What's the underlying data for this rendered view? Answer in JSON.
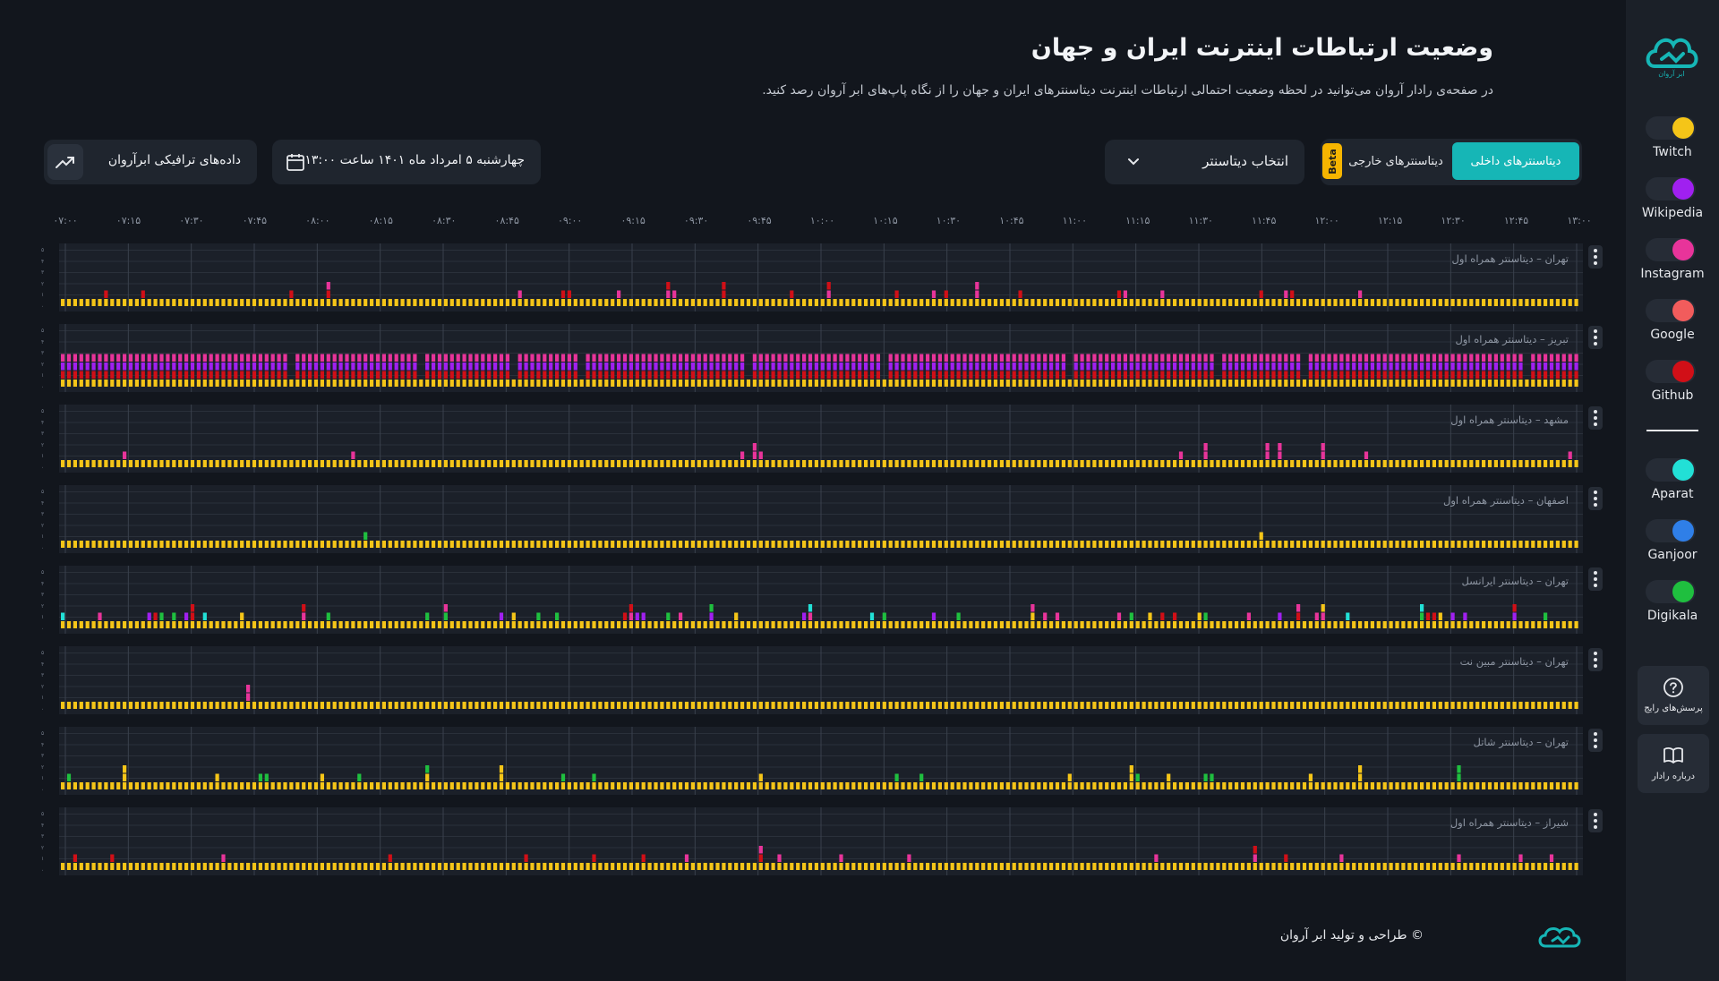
{
  "header": {
    "title": "وضعیت ارتباطات اینترنت ایران و جهان",
    "subtitle": "در صفحه‌ی رادار آروان می‌توانید در لحظه وضعیت احتمالی ارتباطات اینترنت دیتاسنترهای ایران و جهان را از نگاه پاپ‌های ابر آروان رصد کنید."
  },
  "controls": {
    "tab_internal": "دیتاسنترهای داخلی",
    "tab_external": "دیتاسنترهای خارجی",
    "beta": "Beta",
    "datacenter_select": "انتخاب دیتاسنتر",
    "date": "چهارشنبه ۵ امرداد ماه ۱۴۰۱ ساعت ۱۳:۰۰",
    "traffic": "داده‌های ترافیکی ابرآروان",
    "icons": {
      "datacenter_select": "chevron-down-icon",
      "date": "calendar-icon",
      "traffic": "trend-up-icon"
    }
  },
  "time_ticks": [
    "۰۷:۰۰",
    "۰۷:۱۵",
    "۰۷:۳۰",
    "۰۷:۴۵",
    "۰۸:۰۰",
    "۰۸:۱۵",
    "۰۸:۳۰",
    "۰۸:۴۵",
    "۰۹:۰۰",
    "۰۹:۱۵",
    "۰۹:۳۰",
    "۰۹:۴۵",
    "۱۰:۰۰",
    "۱۰:۱۵",
    "۱۰:۳۰",
    "۱۰:۴۵",
    "۱۱:۰۰",
    "۱۱:۱۵",
    "۱۱:۳۰",
    "۱۱:۴۵",
    "۱۲:۰۰",
    "۱۲:۱۵",
    "۱۲:۳۰",
    "۱۲:۴۵",
    "۱۳:۰۰"
  ],
  "y_ticks": [
    "۵",
    "۴",
    "۳",
    "۲",
    "۱",
    "۰"
  ],
  "panels": [
    {
      "label": "تهران – دیتاسنتر همراه اول"
    },
    {
      "label": "تبریز – دیتاسنتر همراه اول"
    },
    {
      "label": "مشهد – دیتاسنتر همراه اول"
    },
    {
      "label": "اصفهان – دیتاسنتر همراه اول"
    },
    {
      "label": "تهران – دیتاسنتر ایرانسل"
    },
    {
      "label": "تهران – دیتاسنتر مبین نت"
    },
    {
      "label": "تهران – دیتاسنتر شاتل"
    },
    {
      "label": "شیراز – دیتاسنتر همراه اول"
    }
  ],
  "services": [
    {
      "name": "Twitch",
      "color": "#f5c518"
    },
    {
      "name": "Wikipedia",
      "color": "#a020f0"
    },
    {
      "name": "Instagram",
      "color": "#e8349a"
    },
    {
      "name": "Google",
      "color": "#f25c5c"
    },
    {
      "name": "Github",
      "color": "#d10f17"
    },
    {
      "name": "Aparat",
      "color": "#22e0d6"
    },
    {
      "name": "Ganjoor",
      "color": "#2f7fe8"
    },
    {
      "name": "Digikala",
      "color": "#1fbf3f"
    }
  ],
  "sidebar": {
    "logo_text": "ابر آروان",
    "faq": "پرسش‌های رایج",
    "about": "درباره رادار",
    "icons": {
      "logo": "arvan-logo-icon",
      "faq": "question-circle-icon",
      "about": "book-icon"
    }
  },
  "footer": {
    "text": "© طراحی و تولید ابر آروان"
  }
}
